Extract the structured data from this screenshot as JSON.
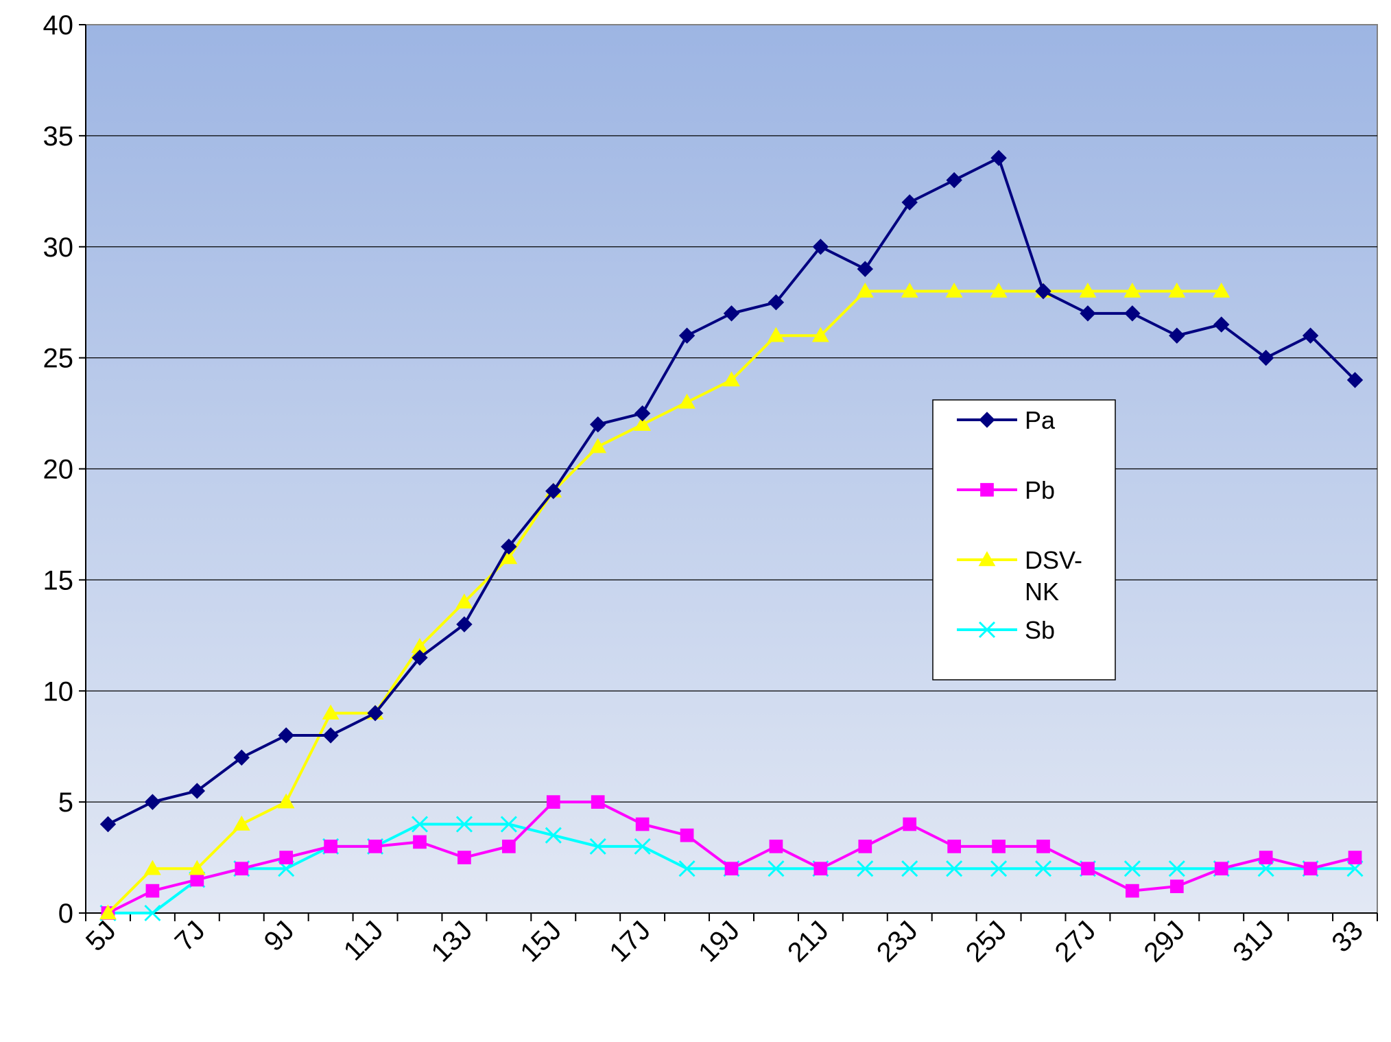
{
  "chart_data": {
    "type": "line",
    "title": "",
    "xlabel": "",
    "ylabel": "",
    "ylim": [
      0,
      40
    ],
    "yticks": [
      0,
      5,
      10,
      15,
      20,
      25,
      30,
      35,
      40
    ],
    "grid": "horizontal",
    "legend_position": "right",
    "background_gradient": [
      "#9db5e3",
      "#e2e8f4"
    ],
    "categories": [
      "5J",
      "6J",
      "7J",
      "8J",
      "9J",
      "10J",
      "11J",
      "12J",
      "13J",
      "14J",
      "15J",
      "16J",
      "17J",
      "18J",
      "19J",
      "20J",
      "21J",
      "22J",
      "23J",
      "24J",
      "25J",
      "26J",
      "27J",
      "28J",
      "29J",
      "30J",
      "31J",
      "32J",
      "33"
    ],
    "xtick_labels": [
      "5J",
      "",
      "7J",
      "",
      "9J",
      "",
      "11J",
      "",
      "13J",
      "",
      "15J",
      "",
      "17J",
      "",
      "19J",
      "",
      "21J",
      "",
      "23J",
      "",
      "25J",
      "",
      "27J",
      "",
      "29J",
      "",
      "31J",
      "",
      "33"
    ],
    "series": [
      {
        "name": "Pa",
        "color": "#000080",
        "marker": "diamond",
        "values": [
          4,
          5,
          5.5,
          7,
          8,
          8,
          9,
          11.5,
          13,
          16.5,
          19,
          22,
          22.5,
          26,
          27,
          27.5,
          30,
          29,
          32,
          33,
          34,
          28,
          27,
          27,
          26,
          26.5,
          25,
          26,
          24
        ]
      },
      {
        "name": "Pb",
        "color": "#ff00ff",
        "marker": "square",
        "values": [
          0,
          1,
          1.5,
          2,
          2.5,
          3,
          3,
          3.2,
          2.5,
          3,
          5,
          5,
          4,
          3.5,
          2,
          3,
          2,
          3,
          4,
          3,
          3,
          3,
          2,
          1,
          1.2,
          2,
          2.5,
          2,
          2.5
        ]
      },
      {
        "name": "DSV-NK",
        "legend_lines": [
          "DSV-",
          "NK"
        ],
        "color": "#ffff00",
        "marker": "triangle",
        "values": [
          0,
          2,
          2,
          4,
          5,
          9,
          9,
          12,
          14,
          16,
          19,
          21,
          22,
          23,
          24,
          26,
          26,
          28,
          28,
          28,
          28,
          28,
          28,
          28,
          28,
          28,
          null,
          null,
          null
        ]
      },
      {
        "name": "Sb",
        "color": "#00ffff",
        "marker": "x",
        "values": [
          0,
          0,
          1.5,
          2,
          2,
          3,
          3,
          4,
          4,
          4,
          3.5,
          3,
          3,
          2,
          2,
          2,
          2,
          2,
          2,
          2,
          2,
          2,
          2,
          2,
          2,
          2,
          2,
          2,
          2
        ]
      }
    ]
  }
}
